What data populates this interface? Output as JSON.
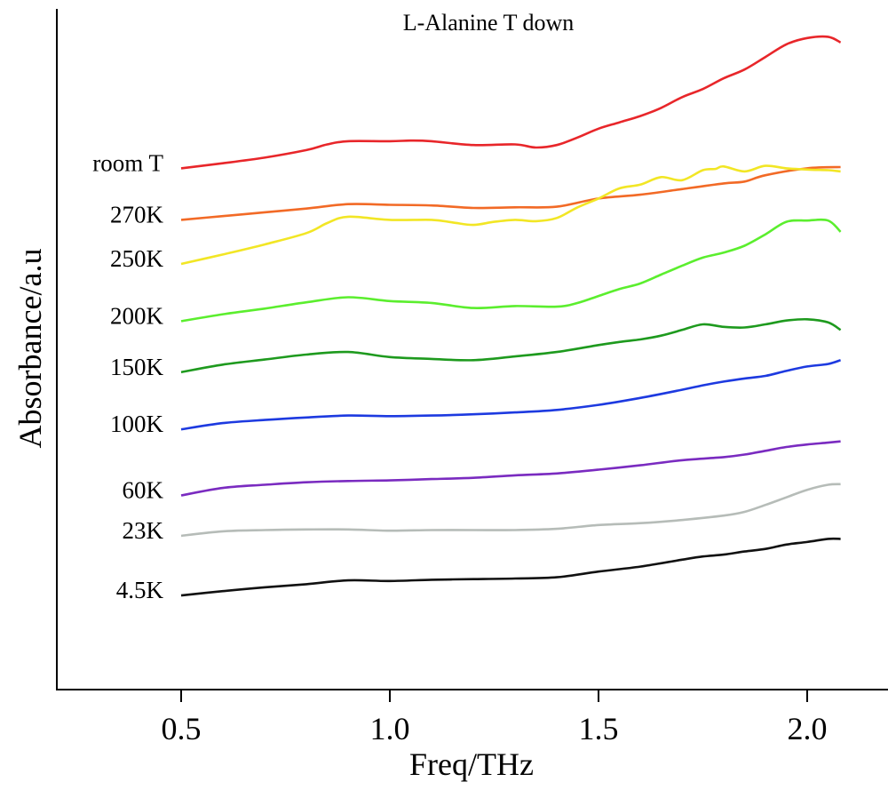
{
  "chart_data": {
    "type": "line",
    "title": "L-Alanine  T down",
    "xlabel": "Freq/THz",
    "ylabel": "Absorbance/a.u",
    "xlim": [
      0.2,
      2.2
    ],
    "ylim": [
      0,
      1
    ],
    "x_ticks": [
      0.5,
      1.0,
      1.5,
      2.0
    ],
    "x_tick_labels": [
      "0.5",
      "1.0",
      "1.5",
      "2.0"
    ],
    "y_ticks_shown": false,
    "grid": false,
    "legend": "inline labels at left of each curve",
    "series": [
      {
        "name": "room T",
        "color": "#e8262a",
        "x": [
          0.5,
          0.6,
          0.7,
          0.8,
          0.85,
          0.9,
          1.0,
          1.05,
          1.1,
          1.2,
          1.3,
          1.35,
          1.4,
          1.45,
          1.5,
          1.55,
          1.6,
          1.65,
          1.7,
          1.75,
          1.8,
          1.85,
          1.9,
          1.95,
          2.0,
          2.05,
          2.08
        ],
        "y": [
          0.789,
          0.797,
          0.806,
          0.818,
          0.827,
          0.832,
          0.832,
          0.833,
          0.832,
          0.826,
          0.827,
          0.822,
          0.826,
          0.838,
          0.852,
          0.862,
          0.872,
          0.885,
          0.902,
          0.915,
          0.932,
          0.946,
          0.966,
          0.986,
          0.996,
          0.998,
          0.989
        ]
      },
      {
        "name": "270K",
        "color": "#f26a26",
        "x": [
          0.5,
          0.6,
          0.7,
          0.8,
          0.9,
          1.0,
          1.1,
          1.2,
          1.3,
          1.4,
          1.5,
          1.6,
          1.7,
          1.8,
          1.85,
          1.9,
          2.0,
          2.08
        ],
        "y": [
          0.707,
          0.713,
          0.719,
          0.725,
          0.732,
          0.731,
          0.73,
          0.726,
          0.727,
          0.728,
          0.741,
          0.747,
          0.756,
          0.765,
          0.768,
          0.778,
          0.789,
          0.791
        ]
      },
      {
        "name": "250K",
        "color": "#f2e625",
        "x": [
          0.5,
          0.6,
          0.7,
          0.8,
          0.85,
          0.9,
          1.0,
          1.1,
          1.15,
          1.2,
          1.25,
          1.3,
          1.35,
          1.4,
          1.45,
          1.5,
          1.55,
          1.6,
          1.65,
          1.7,
          1.75,
          1.78,
          1.8,
          1.85,
          1.9,
          1.95,
          2.0,
          2.05,
          2.08
        ],
        "y": [
          0.637,
          0.652,
          0.668,
          0.686,
          0.702,
          0.712,
          0.707,
          0.707,
          0.703,
          0.699,
          0.704,
          0.707,
          0.705,
          0.71,
          0.727,
          0.741,
          0.757,
          0.763,
          0.775,
          0.77,
          0.786,
          0.788,
          0.792,
          0.784,
          0.793,
          0.789,
          0.787,
          0.786,
          0.784
        ]
      },
      {
        "name": "200K",
        "color": "#5bee2e",
        "x": [
          0.5,
          0.6,
          0.7,
          0.8,
          0.9,
          1.0,
          1.1,
          1.2,
          1.3,
          1.4,
          1.45,
          1.5,
          1.55,
          1.6,
          1.65,
          1.7,
          1.75,
          1.8,
          1.85,
          1.9,
          1.95,
          2.0,
          2.05,
          2.08
        ],
        "y": [
          0.546,
          0.557,
          0.566,
          0.576,
          0.584,
          0.578,
          0.575,
          0.567,
          0.57,
          0.569,
          0.575,
          0.586,
          0.597,
          0.606,
          0.62,
          0.634,
          0.647,
          0.655,
          0.666,
          0.684,
          0.704,
          0.706,
          0.706,
          0.688
        ]
      },
      {
        "name": "150K",
        "color": "#1e9a1e",
        "x": [
          0.5,
          0.6,
          0.7,
          0.8,
          0.9,
          1.0,
          1.1,
          1.2,
          1.3,
          1.4,
          1.5,
          1.55,
          1.6,
          1.65,
          1.7,
          1.75,
          1.8,
          1.85,
          1.9,
          1.95,
          2.0,
          2.05,
          2.08
        ],
        "y": [
          0.465,
          0.477,
          0.485,
          0.493,
          0.497,
          0.489,
          0.486,
          0.484,
          0.49,
          0.497,
          0.508,
          0.513,
          0.517,
          0.523,
          0.532,
          0.541,
          0.537,
          0.536,
          0.541,
          0.547,
          0.549,
          0.544,
          0.532
        ]
      },
      {
        "name": "100K",
        "color": "#1d3ae0",
        "x": [
          0.5,
          0.6,
          0.7,
          0.8,
          0.9,
          1.0,
          1.1,
          1.2,
          1.3,
          1.4,
          1.5,
          1.6,
          1.7,
          1.75,
          1.8,
          1.85,
          1.9,
          1.95,
          2.0,
          2.05,
          2.08
        ],
        "y": [
          0.374,
          0.384,
          0.389,
          0.393,
          0.396,
          0.395,
          0.396,
          0.398,
          0.401,
          0.405,
          0.413,
          0.424,
          0.437,
          0.444,
          0.45,
          0.455,
          0.459,
          0.467,
          0.474,
          0.478,
          0.484
        ]
      },
      {
        "name": "60K",
        "color": "#7a2bc0",
        "x": [
          0.5,
          0.6,
          0.7,
          0.8,
          0.9,
          1.0,
          1.1,
          1.2,
          1.3,
          1.4,
          1.5,
          1.6,
          1.7,
          1.8,
          1.85,
          1.9,
          1.95,
          2.0,
          2.05,
          2.08
        ],
        "y": [
          0.269,
          0.281,
          0.286,
          0.29,
          0.292,
          0.293,
          0.295,
          0.297,
          0.301,
          0.304,
          0.31,
          0.317,
          0.325,
          0.33,
          0.334,
          0.34,
          0.346,
          0.35,
          0.353,
          0.355
        ]
      },
      {
        "name": "23K",
        "color": "#b6bcb8",
        "x": [
          0.5,
          0.6,
          0.7,
          0.8,
          0.9,
          1.0,
          1.1,
          1.2,
          1.3,
          1.4,
          1.5,
          1.6,
          1.7,
          1.8,
          1.85,
          1.9,
          1.95,
          2.0,
          2.05,
          2.08
        ],
        "y": [
          0.205,
          0.212,
          0.214,
          0.215,
          0.215,
          0.213,
          0.214,
          0.214,
          0.214,
          0.216,
          0.222,
          0.225,
          0.23,
          0.237,
          0.243,
          0.254,
          0.266,
          0.278,
          0.286,
          0.287
        ]
      },
      {
        "name": "4.5K",
        "color": "#111111",
        "x": [
          0.5,
          0.6,
          0.7,
          0.8,
          0.9,
          1.0,
          1.1,
          1.2,
          1.3,
          1.4,
          1.5,
          1.6,
          1.7,
          1.75,
          1.8,
          1.85,
          1.9,
          1.95,
          2.0,
          2.05,
          2.08
        ],
        "y": [
          0.11,
          0.117,
          0.123,
          0.128,
          0.134,
          0.133,
          0.135,
          0.136,
          0.137,
          0.139,
          0.148,
          0.156,
          0.167,
          0.172,
          0.175,
          0.18,
          0.184,
          0.191,
          0.195,
          0.2,
          0.2
        ]
      }
    ]
  }
}
